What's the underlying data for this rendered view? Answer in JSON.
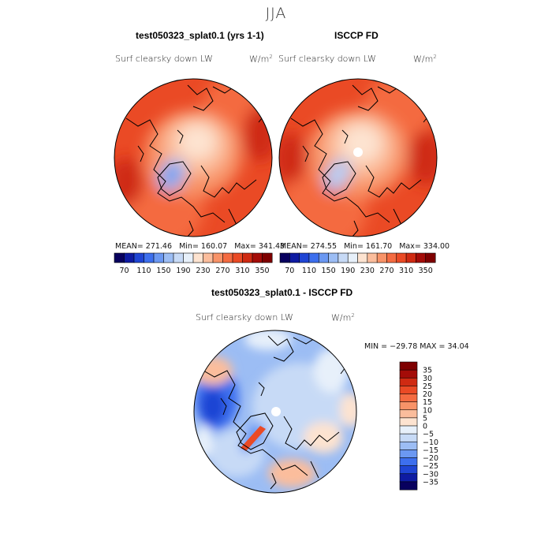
{
  "figure": {
    "season": "JJA"
  },
  "panels": [
    {
      "title": "test050323_splat0.1 (yrs 1-1)",
      "field": "Surf clearsky down LW",
      "units_base": "W/m",
      "units_exp": "2",
      "mean_text": "MEAN= 271.46",
      "min_text": "Min= 160.07",
      "max_text": "Max= 341.43"
    },
    {
      "title": "ISCCP FD",
      "field": "Surf clearsky down LW",
      "units_base": "W/m",
      "units_exp": "2",
      "mean_text": "MEAN= 274.55",
      "min_text": "Min= 161.70",
      "max_text": "Max= 334.00"
    },
    {
      "title": "test050323_splat0.1 - ISCCP FD",
      "field": "Surf clearsky down LW",
      "units_base": "W/m",
      "units_exp": "2",
      "minmax_text": "MIN = −29.78 MAX =  34.04"
    }
  ],
  "chart_data": [
    {
      "type": "heatmap",
      "projection": "polar-stereographic-north",
      "title": "test050323_splat0.1 (yrs 1-1)",
      "field": "Surf clearsky down LW",
      "mean": 271.46,
      "min": 160.07,
      "max": 341.43,
      "colorbar": {
        "levels": [
          70,
          90,
          110,
          130,
          150,
          170,
          190,
          210,
          230,
          250,
          270,
          290,
          310,
          330,
          350
        ],
        "tick_labels": [
          "70",
          "110",
          "150",
          "190",
          "230",
          "270",
          "310",
          "350"
        ],
        "colors": [
          "#08005e",
          "#0e1ba2",
          "#1f45d4",
          "#3d6fee",
          "#6b98f2",
          "#9cbdf4",
          "#c7daf6",
          "#e7f0fa",
          "#fde3d0",
          "#fbbd9c",
          "#f89368",
          "#f46b41",
          "#ea4a25",
          "#cf2a12",
          "#a40c08",
          "#7e0000"
        ]
      }
    },
    {
      "type": "heatmap",
      "projection": "polar-stereographic-north",
      "title": "ISCCP FD",
      "field": "Surf clearsky down LW",
      "mean": 274.55,
      "min": 161.7,
      "max": 334.0,
      "colorbar": {
        "levels": [
          70,
          90,
          110,
          130,
          150,
          170,
          190,
          210,
          230,
          250,
          270,
          290,
          310,
          330,
          350
        ],
        "tick_labels": [
          "70",
          "110",
          "150",
          "190",
          "230",
          "270",
          "310",
          "350"
        ],
        "colors": [
          "#08005e",
          "#0e1ba2",
          "#1f45d4",
          "#3d6fee",
          "#6b98f2",
          "#9cbdf4",
          "#c7daf6",
          "#e7f0fa",
          "#fde3d0",
          "#fbbd9c",
          "#f89368",
          "#f46b41",
          "#ea4a25",
          "#cf2a12",
          "#a40c08",
          "#7e0000"
        ]
      }
    },
    {
      "type": "heatmap",
      "projection": "polar-stereographic-north",
      "title": "test050323_splat0.1 - ISCCP FD",
      "field": "Surf clearsky down LW",
      "min": -29.78,
      "max": 34.04,
      "colorbar": {
        "orientation": "vertical",
        "levels": [
          35,
          30,
          25,
          20,
          15,
          10,
          5,
          0,
          -5,
          -10,
          -15,
          -20,
          -25,
          -30,
          -35
        ],
        "tick_labels": [
          "35",
          "30",
          "25",
          "20",
          "15",
          "10",
          "5",
          "0",
          "−5",
          "−10",
          "−15",
          "−20",
          "−25",
          "−30",
          "−35"
        ],
        "colors": [
          "#7e0000",
          "#a40c08",
          "#cf2a12",
          "#ea4a25",
          "#f46b41",
          "#f89368",
          "#fbbd9c",
          "#fde3d0",
          "#e7f0fa",
          "#c7daf6",
          "#9cbdf4",
          "#6b98f2",
          "#3d6fee",
          "#1f45d4",
          "#0e1ba2",
          "#08005e"
        ]
      }
    }
  ]
}
